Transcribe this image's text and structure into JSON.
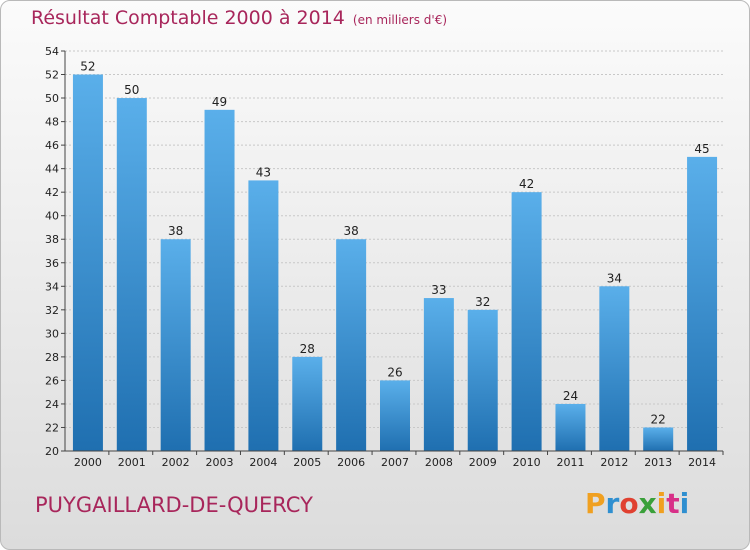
{
  "title": "Résultat Comptable 2000 à 2014",
  "unit": "(en milliers d'€)",
  "commune": "PUYGAILLARD-DE-QUERCY",
  "logo": "Proxiti",
  "colors": {
    "title": "#a8265b",
    "bar_top": "#5aafea",
    "bar_bottom": "#1f6fb0",
    "logo": [
      "#f0a020",
      "#2f8fd0",
      "#e04030",
      "#3aa03a",
      "#f0a020",
      "#d83088",
      "#2f8fd0"
    ]
  },
  "chart_data": {
    "type": "bar",
    "title": "Résultat Comptable 2000 à 2014",
    "subtitle": "(en milliers d'€)",
    "categories": [
      "2000",
      "2001",
      "2002",
      "2003",
      "2004",
      "2005",
      "2006",
      "2007",
      "2008",
      "2009",
      "2010",
      "2011",
      "2012",
      "2013",
      "2014"
    ],
    "values": [
      52,
      50,
      38,
      49,
      43,
      28,
      38,
      26,
      33,
      32,
      42,
      24,
      34,
      22,
      45
    ],
    "ylim": [
      20,
      54
    ],
    "yticks": [
      20,
      22,
      24,
      26,
      28,
      30,
      32,
      34,
      36,
      38,
      40,
      42,
      44,
      46,
      48,
      50,
      52,
      54
    ],
    "grid": true,
    "data_labels": true
  }
}
